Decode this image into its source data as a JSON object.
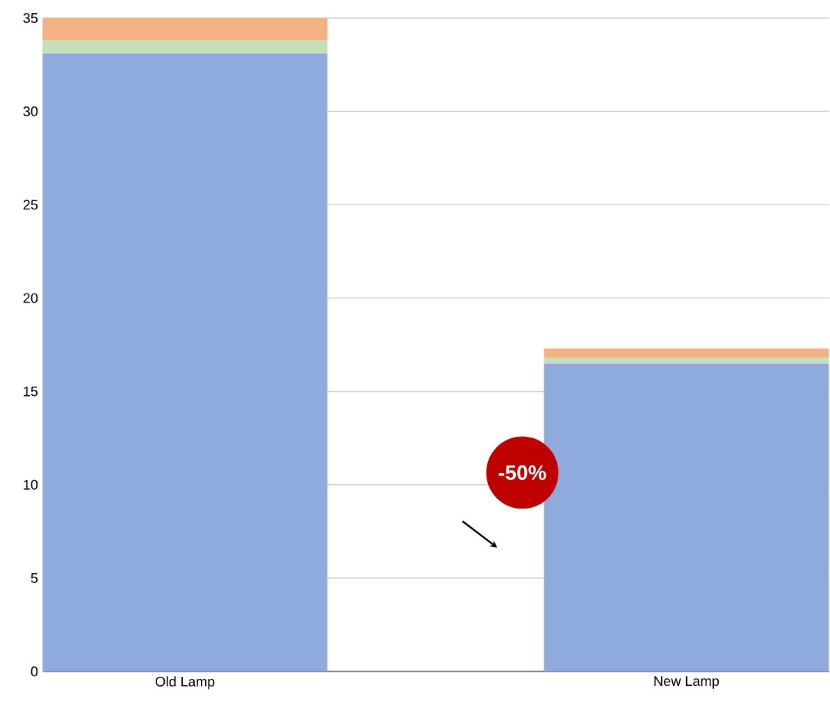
{
  "chart_data": {
    "type": "bar",
    "stacked": true,
    "categories": [
      "Old Lamp",
      "New Lamp"
    ],
    "series": [
      {
        "color": "#8faadc",
        "values": [
          33.1,
          16.5
        ]
      },
      {
        "color": "#c5e0b4",
        "values": [
          0.7,
          0.3
        ]
      },
      {
        "color": "#f4b183",
        "values": [
          1.2,
          0.5
        ]
      }
    ],
    "ylim": [
      0,
      35
    ],
    "yticks": [
      0,
      5,
      10,
      15,
      20,
      25,
      30,
      35
    ],
    "grid": "y",
    "annotations": [
      "-50%"
    ]
  }
}
